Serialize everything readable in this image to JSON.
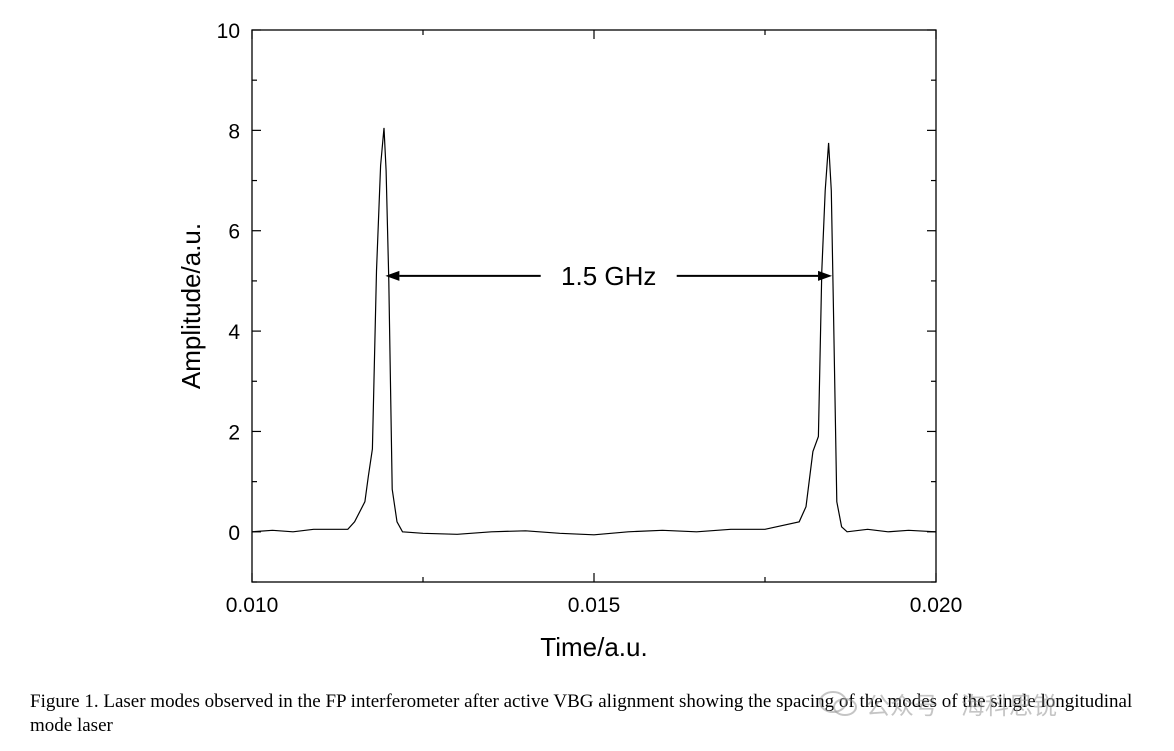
{
  "chart_data": {
    "type": "line",
    "xlabel": "Time/a.u.",
    "ylabel": "Amplitude/a.u.",
    "xlim": [
      0.01,
      0.02
    ],
    "ylim": [
      -1,
      10
    ],
    "xticks": [
      0.01,
      0.015,
      0.02
    ],
    "xtick_labels": [
      "0.010",
      "0.015",
      "0.020"
    ],
    "yticks": [
      0,
      2,
      4,
      6,
      8,
      10
    ],
    "ytick_labels": [
      "0",
      "2",
      "4",
      "6",
      "8",
      "10"
    ],
    "grid": false,
    "annotation": {
      "text": "1.5 GHz",
      "x_start": 0.01195,
      "x_end": 0.01848,
      "y": 5.1
    },
    "series": [
      {
        "x": [
          0.01,
          0.0103,
          0.0106,
          0.0109,
          0.0114,
          0.0115,
          0.01165,
          0.0117,
          0.01176,
          0.01182,
          0.01188,
          0.01193,
          0.01196,
          0.012,
          0.01205,
          0.01212,
          0.0122,
          0.0125,
          0.013,
          0.0135,
          0.014,
          0.0145,
          0.015,
          0.0155,
          0.016,
          0.0165,
          0.017,
          0.0175,
          0.018,
          0.0181,
          0.0182,
          0.01828,
          0.01833,
          0.01838,
          0.01843,
          0.01847,
          0.0185,
          0.01855,
          0.01862,
          0.0187,
          0.019,
          0.0193,
          0.0196,
          0.02
        ],
        "y": [
          0.0,
          0.03,
          0.0,
          0.05,
          0.05,
          0.2,
          0.6,
          1.1,
          1.65,
          5.2,
          7.3,
          8.05,
          7.2,
          5.0,
          0.85,
          0.2,
          0.0,
          -0.03,
          -0.05,
          0.0,
          0.02,
          -0.03,
          -0.06,
          0.0,
          0.03,
          0.0,
          0.05,
          0.05,
          0.2,
          0.5,
          1.6,
          1.9,
          5.2,
          6.8,
          7.75,
          6.8,
          4.5,
          0.6,
          0.1,
          0.0,
          0.05,
          0.0,
          0.03,
          0.0
        ]
      }
    ]
  },
  "caption": "Figure 1. Laser modes observed in the FP interferometer after active VBG alignment showing the spacing of the modes of the single longitudinal mode laser",
  "watermark": "公众号 · 海科思锐"
}
